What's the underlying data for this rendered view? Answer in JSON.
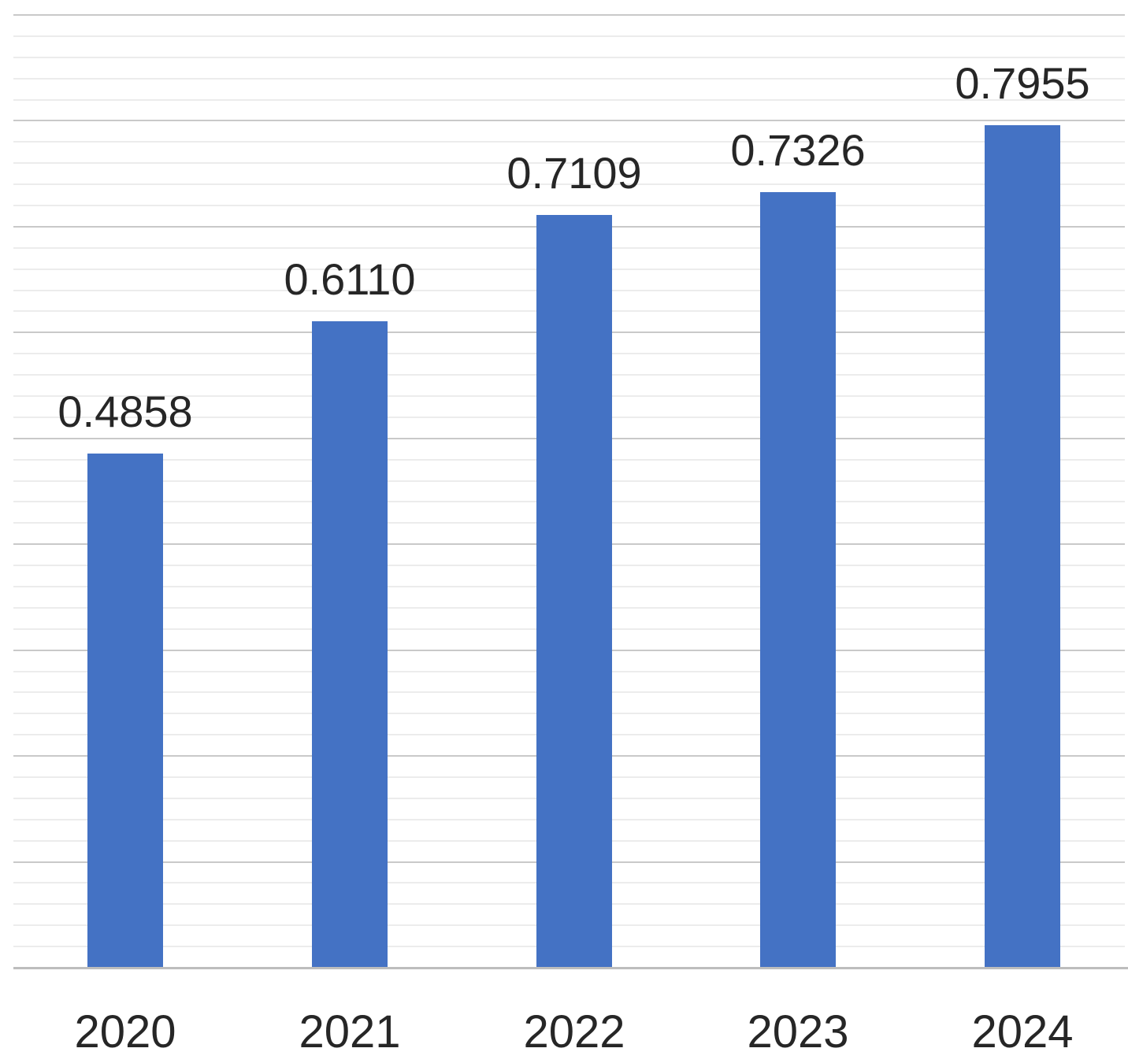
{
  "chart_data": {
    "type": "bar",
    "title": "",
    "xlabel": "",
    "ylabel": "",
    "categories": [
      "2020",
      "2021",
      "2022",
      "2023",
      "2024"
    ],
    "values": [
      0.4858,
      0.611,
      0.7109,
      0.7326,
      0.7955
    ],
    "data_labels": [
      "0.4858",
      "0.6110",
      "0.7109",
      "0.7326",
      "0.7955"
    ],
    "series_name": "",
    "ylim": [
      0,
      0.9
    ],
    "y_axis_tick_labels_visible": false,
    "gridlines": {
      "visible": true,
      "minor_step": 0.02,
      "major_step": 0.1
    },
    "legend_position": "none",
    "data_labels_visible": true
  },
  "colors": {
    "bar_fill": "#4472C4",
    "data_label_text": "#262626",
    "tick_label_text": "#262626",
    "grid_major": "#C9C9C9",
    "grid_minor": "#ECECEC",
    "axis_line": "#BDBDBD",
    "background": "#FFFFFF"
  }
}
